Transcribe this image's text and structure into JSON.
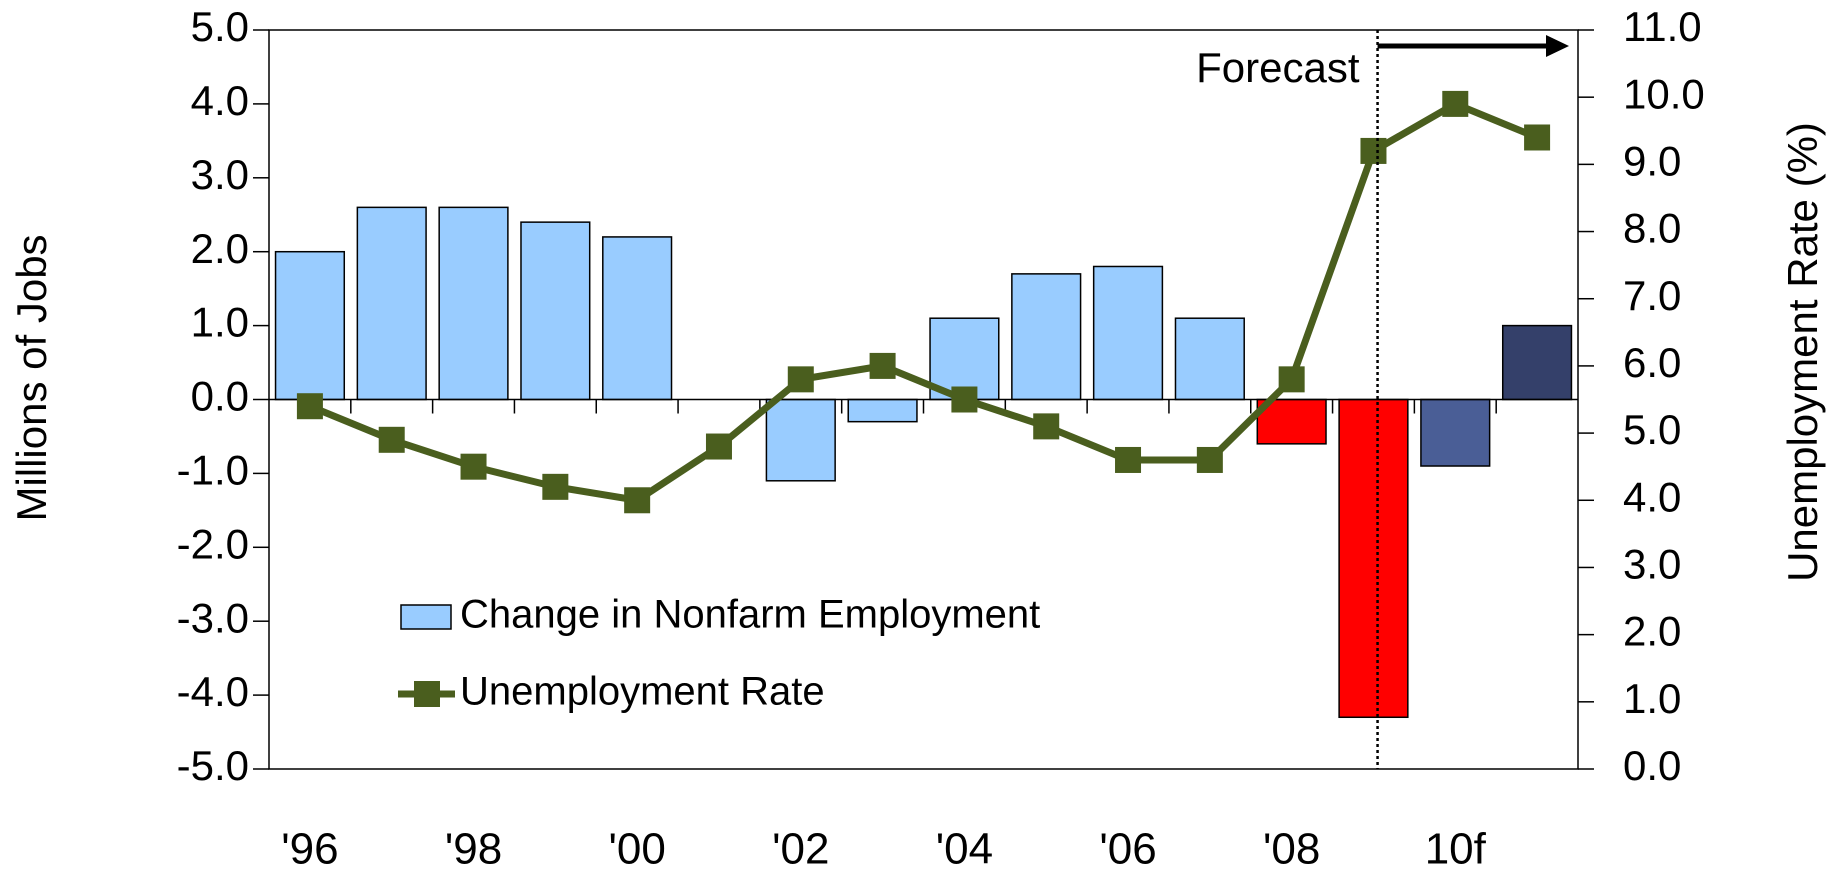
{
  "chart_data": {
    "type": "bar",
    "categories": [
      "'96",
      null,
      "'98",
      null,
      "'00",
      null,
      "'02",
      null,
      "'04",
      null,
      "'06",
      null,
      "'08",
      null,
      "10f",
      null
    ],
    "series": [
      {
        "name": "Change in Nonfarm Employment",
        "type": "bar",
        "color": "#99ccff",
        "colors": [
          "#99ccff",
          "#99ccff",
          "#99ccff",
          "#99ccff",
          "#99ccff",
          "#99ccff",
          "#99ccff",
          "#99ccff",
          "#99ccff",
          "#99ccff",
          "#99ccff",
          "#99ccff",
          "#ff0000",
          "#ff0000",
          "#4a5e96",
          "#34406a"
        ],
        "values": [
          2.0,
          2.6,
          2.6,
          2.4,
          2.2,
          0,
          -1.1,
          -0.3,
          1.1,
          1.7,
          1.8,
          1.1,
          -0.6,
          -4.3,
          -0.9,
          1.0
        ]
      },
      {
        "name": "Unemployment Rate",
        "type": "line",
        "axis": "y2",
        "color": "#4a5e1e",
        "values": [
          5.4,
          4.9,
          4.5,
          4.2,
          4.0,
          4.8,
          5.8,
          6.0,
          5.5,
          5.1,
          4.6,
          4.6,
          5.8,
          9.2,
          9.9,
          9.4
        ]
      }
    ],
    "ylabel": "Millions of Jobs",
    "y2label": "Unemployment Rate (%)",
    "annotation": "Forecast",
    "ylim": [
      -5,
      5
    ],
    "yticks": [
      {
        "value": -5,
        "label": "-5.0"
      },
      {
        "value": -4,
        "label": "-4.0"
      },
      {
        "value": -3,
        "label": "-3.0"
      },
      {
        "value": -2,
        "label": "-2.0"
      },
      {
        "value": -1,
        "label": "-1.0"
      },
      {
        "value": 0,
        "label": "0.0"
      },
      {
        "value": 1,
        "label": "1.0"
      },
      {
        "value": 2,
        "label": "2.0"
      },
      {
        "value": 3,
        "label": "3.0"
      },
      {
        "value": 4,
        "label": "4.0"
      },
      {
        "value": 5,
        "label": "5.0"
      }
    ],
    "y2lim": [
      0,
      11
    ],
    "y2ticks": [
      {
        "value": 0,
        "label": "0.0"
      },
      {
        "value": 1,
        "label": "1.0"
      },
      {
        "value": 2,
        "label": "2.0"
      },
      {
        "value": 3,
        "label": "3.0"
      },
      {
        "value": 4,
        "label": "4.0"
      },
      {
        "value": 5,
        "label": "5.0"
      },
      {
        "value": 6,
        "label": "6.0"
      },
      {
        "value": 7,
        "label": "7.0"
      },
      {
        "value": 8,
        "label": "8.0"
      },
      {
        "value": 9,
        "label": "9.0"
      },
      {
        "value": 10,
        "label": "10.0"
      },
      {
        "value": 11,
        "label": "11.0"
      }
    ],
    "legend": "lower left",
    "grid": false
  }
}
